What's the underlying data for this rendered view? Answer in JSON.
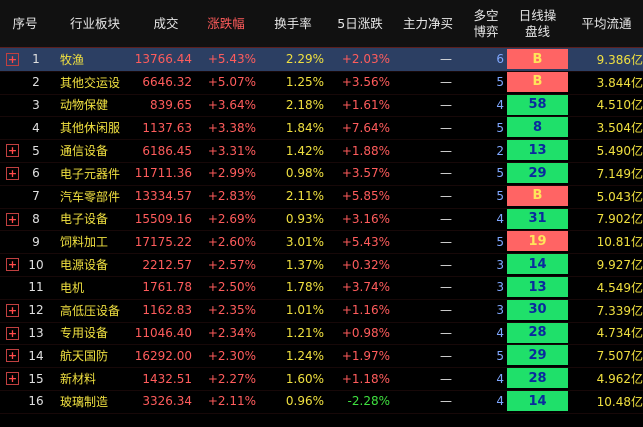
{
  "headers": {
    "index": "序号",
    "industry": "行业板块",
    "volume": "成交",
    "change_pct": "涨跌幅",
    "turnover": "换手率",
    "five_day": "5日涨跌",
    "main_net": "主力净买",
    "bull_bear": "多空\n博弈",
    "daily_trend": "日线操\n盘线",
    "avg_float": "平均流通"
  },
  "rows": [
    {
      "idx": "1",
      "name": "牧渔",
      "vol": "13766.44",
      "chg": "+5.43%",
      "turn": "2.29%",
      "d5": "+2.03%",
      "d5_dir": "up",
      "net": "—",
      "bull": "6",
      "daily": "B",
      "daily_color": "red",
      "float": "9.386亿",
      "plus": true,
      "selected": true
    },
    {
      "idx": "2",
      "name": "其他交运设",
      "vol": "6646.32",
      "chg": "+5.07%",
      "turn": "1.25%",
      "d5": "+3.56%",
      "d5_dir": "up",
      "net": "—",
      "bull": "5",
      "daily": "B",
      "daily_color": "red",
      "float": "3.844亿",
      "plus": false
    },
    {
      "idx": "3",
      "name": "动物保健",
      "vol": "839.65",
      "chg": "+3.64%",
      "turn": "2.18%",
      "d5": "+1.61%",
      "d5_dir": "up",
      "net": "—",
      "bull": "4",
      "daily": "58",
      "daily_color": "green",
      "float": "4.510亿",
      "plus": false
    },
    {
      "idx": "4",
      "name": "其他休闲服",
      "vol": "1137.63",
      "chg": "+3.38%",
      "turn": "1.84%",
      "d5": "+7.64%",
      "d5_dir": "up",
      "net": "—",
      "bull": "5",
      "daily": "8",
      "daily_color": "green",
      "float": "3.504亿",
      "plus": false
    },
    {
      "idx": "5",
      "name": "通信设备",
      "vol": "6186.45",
      "chg": "+3.31%",
      "turn": "1.42%",
      "d5": "+1.88%",
      "d5_dir": "up",
      "net": "—",
      "bull": "2",
      "daily": "13",
      "daily_color": "green",
      "float": "5.490亿",
      "plus": true
    },
    {
      "idx": "6",
      "name": "电子元器件",
      "vol": "11711.36",
      "chg": "+2.99%",
      "turn": "0.98%",
      "d5": "+3.57%",
      "d5_dir": "up",
      "net": "—",
      "bull": "5",
      "daily": "29",
      "daily_color": "green",
      "float": "7.149亿",
      "plus": true
    },
    {
      "idx": "7",
      "name": "汽车零部件",
      "vol": "13334.57",
      "chg": "+2.83%",
      "turn": "2.11%",
      "d5": "+5.85%",
      "d5_dir": "up",
      "net": "—",
      "bull": "5",
      "daily": "B",
      "daily_color": "red",
      "float": "5.043亿",
      "plus": false
    },
    {
      "idx": "8",
      "name": "电子设备",
      "vol": "15509.16",
      "chg": "+2.69%",
      "turn": "0.93%",
      "d5": "+3.16%",
      "d5_dir": "up",
      "net": "—",
      "bull": "4",
      "daily": "31",
      "daily_color": "green",
      "float": "7.902亿",
      "plus": true
    },
    {
      "idx": "9",
      "name": "饲料加工",
      "vol": "17175.22",
      "chg": "+2.60%",
      "turn": "3.01%",
      "d5": "+5.43%",
      "d5_dir": "up",
      "net": "—",
      "bull": "5",
      "daily": "19",
      "daily_color": "red",
      "float": "10.81亿",
      "plus": false
    },
    {
      "idx": "10",
      "name": "电源设备",
      "vol": "2212.57",
      "chg": "+2.57%",
      "turn": "1.37%",
      "d5": "+0.32%",
      "d5_dir": "up",
      "net": "—",
      "bull": "3",
      "daily": "14",
      "daily_color": "green",
      "float": "9.927亿",
      "plus": true
    },
    {
      "idx": "11",
      "name": "电机",
      "vol": "1761.78",
      "chg": "+2.50%",
      "turn": "1.78%",
      "d5": "+3.74%",
      "d5_dir": "up",
      "net": "—",
      "bull": "3",
      "daily": "13",
      "daily_color": "green",
      "float": "4.549亿",
      "plus": false
    },
    {
      "idx": "12",
      "name": "高低压设备",
      "vol": "1162.83",
      "chg": "+2.35%",
      "turn": "1.01%",
      "d5": "+1.16%",
      "d5_dir": "up",
      "net": "—",
      "bull": "3",
      "daily": "30",
      "daily_color": "green",
      "float": "7.339亿",
      "plus": true
    },
    {
      "idx": "13",
      "name": "专用设备",
      "vol": "11046.40",
      "chg": "+2.34%",
      "turn": "1.21%",
      "d5": "+0.98%",
      "d5_dir": "up",
      "net": "—",
      "bull": "4",
      "daily": "28",
      "daily_color": "green",
      "float": "4.734亿",
      "plus": true
    },
    {
      "idx": "14",
      "name": "航天国防",
      "vol": "16292.00",
      "chg": "+2.30%",
      "turn": "1.24%",
      "d5": "+1.97%",
      "d5_dir": "up",
      "net": "—",
      "bull": "5",
      "daily": "29",
      "daily_color": "green",
      "float": "7.507亿",
      "plus": true
    },
    {
      "idx": "15",
      "name": "新材料",
      "vol": "1432.51",
      "chg": "+2.27%",
      "turn": "1.60%",
      "d5": "+1.18%",
      "d5_dir": "up",
      "net": "—",
      "bull": "4",
      "daily": "28",
      "daily_color": "green",
      "float": "4.962亿",
      "plus": true
    },
    {
      "idx": "16",
      "name": "玻璃制造",
      "vol": "3326.34",
      "chg": "+2.11%",
      "turn": "0.96%",
      "d5": "-2.28%",
      "d5_dir": "down",
      "net": "—",
      "bull": "4",
      "daily": "14",
      "daily_color": "green",
      "float": "10.48亿",
      "plus": false
    }
  ]
}
